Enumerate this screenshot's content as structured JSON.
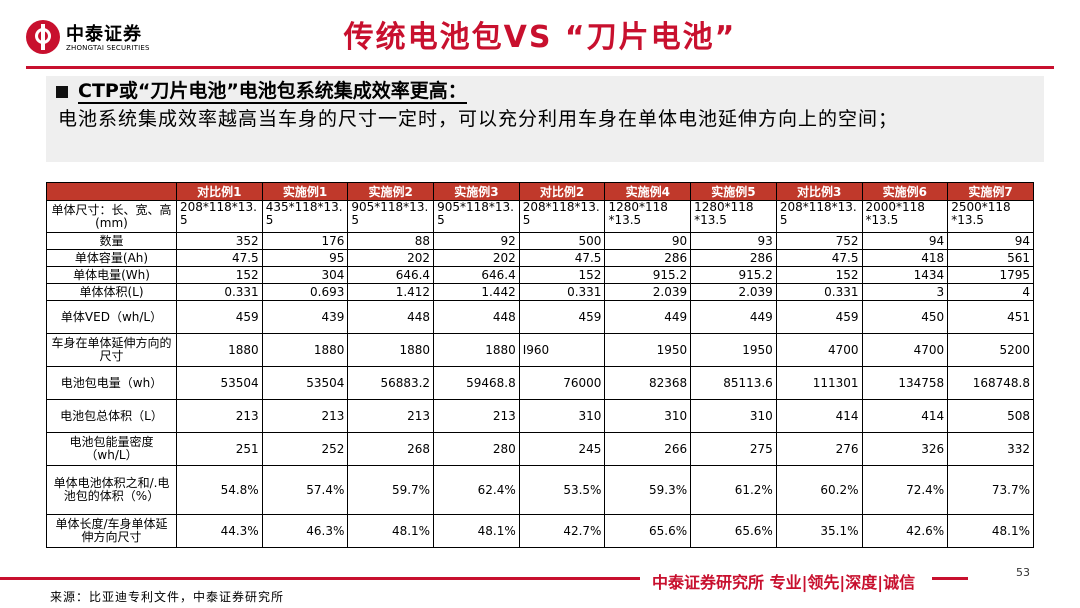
{
  "logo": {
    "cn": "中泰证券",
    "en": "ZHONGTAI SECURITIES"
  },
  "title": "传统电池包VS “刀片电池”",
  "summary": {
    "heading": "CTP或“刀片电池”电池包系统集成效率更高：",
    "body": "电池系统集成效率越高当车身的尺寸一定时，可以充分利用车身在单体电池延伸方向上的空间；"
  },
  "table": {
    "columns": [
      "对比例1",
      "实施例1",
      "实施例2",
      "实施例3",
      "对比例2",
      "实施例4",
      "实施例5",
      "对比例3",
      "实施例6",
      "实施例7"
    ],
    "rows": [
      {
        "label": "单体尺寸：长、宽、高(mm)",
        "cells": [
          "208*118*13.5",
          "435*118*13.5",
          "905*118*13.5",
          "905*118*13.5",
          "208*118*13.5",
          "1280*118\n*13.5",
          "1280*118\n*13.5",
          "208*118*13.5",
          "2000*118\n*13.5",
          "2500*118\n*13.5"
        ]
      },
      {
        "label": "数量",
        "cells": [
          "352",
          "176",
          "88",
          "92",
          "500",
          "90",
          "93",
          "752",
          "94",
          "94"
        ]
      },
      {
        "label": "单体容量(Ah)",
        "cells": [
          "47.5",
          "95",
          "202",
          "202",
          "47.5",
          "286",
          "286",
          "47.5",
          "418",
          "561"
        ]
      },
      {
        "label": "单体电量(Wh)",
        "cells": [
          "152",
          "304",
          "646.4",
          "646.4",
          "152",
          "915.2",
          "915.2",
          "152",
          "1434",
          "1795"
        ]
      },
      {
        "label": "单体体积(L)",
        "cells": [
          "0.331",
          "0.693",
          "1.412",
          "1.442",
          "0.331",
          "2.039",
          "2.039",
          "0.331",
          "3",
          "4"
        ]
      },
      {
        "label": "单体VED（wh/L）",
        "cells": [
          "459",
          "439",
          "448",
          "448",
          "459",
          "449",
          "449",
          "459",
          "450",
          "451"
        ]
      },
      {
        "label": "车身在单体延伸方向的尺寸",
        "cells": [
          "1880",
          "1880",
          "1880",
          "1880",
          "I960",
          "1950",
          "1950",
          "4700",
          "4700",
          "5200"
        ]
      },
      {
        "label": "电池包电量（wh）",
        "cells": [
          "53504",
          "53504",
          "56883.2",
          "59468.8",
          "76000",
          "82368",
          "85113.6",
          "111301",
          "134758",
          "168748.8"
        ]
      },
      {
        "label": "电池包总体积（L）",
        "cells": [
          "213",
          "213",
          "213",
          "213",
          "310",
          "310",
          "310",
          "414",
          "414",
          "508"
        ]
      },
      {
        "label": "电池包能量密度（wh/L）",
        "cells": [
          "251",
          "252",
          "268",
          "280",
          "245",
          "266",
          "275",
          "276",
          "326",
          "332"
        ]
      },
      {
        "label": "单体电池体积之和/.电池包的体积（%）",
        "cells": [
          "54.8%",
          "57.4%",
          "59.7%",
          "62.4%",
          "53.5%",
          "59.3%",
          "61.2%",
          "60.2%",
          "72.4%",
          "73.7%"
        ]
      },
      {
        "label": "单体长度/车身单体延伸方向尺寸",
        "cells": [
          "44.3%",
          "46.3%",
          "48.1%",
          "48.1%",
          "42.7%",
          "65.6%",
          "65.6%",
          "35.1%",
          "42.6%",
          "48.1%"
        ]
      }
    ]
  },
  "footer": {
    "brand": "中泰证券研究所 专业|领先|深度|诚信",
    "page": "53",
    "source": "来源：比亚迪专利文件，中泰证券研究所"
  },
  "colors": {
    "brand_red": "#c8102e",
    "header_red": "#c0392b"
  }
}
